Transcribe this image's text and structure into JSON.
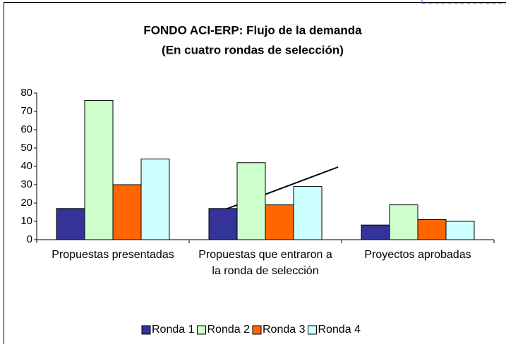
{
  "chart_data": {
    "type": "bar",
    "title": "FONDO ACI-ERP:  Flujo de la demanda",
    "subtitle": "(En cuatro rondas de selección)",
    "categories": [
      "Propuestas presentadas",
      "Propuestas que entraron a la ronda de selección",
      "Proyectos aprobadas"
    ],
    "series": [
      {
        "name": "Ronda 1",
        "color": "#333399",
        "values": [
          17,
          17,
          8
        ]
      },
      {
        "name": "Ronda 2",
        "color": "#ccffcc",
        "values": [
          76,
          42,
          19
        ]
      },
      {
        "name": "Ronda 3",
        "color": "#ff6600",
        "values": [
          30,
          19,
          11
        ]
      },
      {
        "name": "Ronda 4",
        "color": "#ccffff",
        "values": [
          44,
          29,
          10
        ]
      }
    ],
    "ylim": [
      0,
      80
    ],
    "yticks": [
      0,
      10,
      20,
      30,
      40,
      50,
      60,
      70,
      80
    ],
    "grid": false,
    "legend": "bottom"
  }
}
